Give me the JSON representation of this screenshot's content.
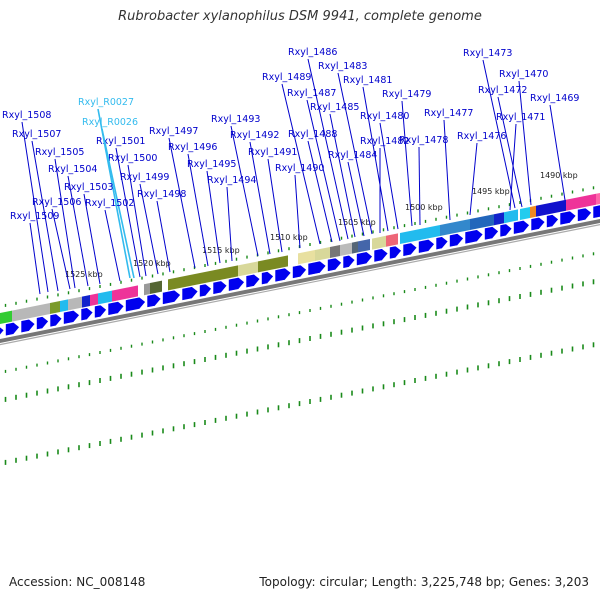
{
  "title": "Rubrobacter xylanophilus DSM 9941, complete genome",
  "footer": {
    "accession": "Accession: NC_008148",
    "stats": "Topology: circular; Length: 3,225,748 bp; Genes: 3,203"
  },
  "colors": {
    "gene_label": "#0000cc",
    "rna_label": "#33bbee",
    "cds_arrow": "#0000ee",
    "backbone": "#777777",
    "tick": "#1a8a1a"
  },
  "kbp_ticks": [
    "1490 kbp",
    "1495 kbp",
    "1500 kbp",
    "1505 kbp",
    "1510 kbp",
    "1515 kbp",
    "1520 kbp",
    "1525 kbp"
  ],
  "gene_labels": [
    {
      "text": "Rxyl_1473",
      "kind": "gene"
    },
    {
      "text": "Rxyl_1470",
      "kind": "gene"
    },
    {
      "text": "Rxyl_1472",
      "kind": "gene"
    },
    {
      "text": "Rxyl_1469",
      "kind": "gene"
    },
    {
      "text": "Rxyl_1471",
      "kind": "gene"
    },
    {
      "text": "Rxyl_1476",
      "kind": "gene"
    },
    {
      "text": "Rxyl_1477",
      "kind": "gene"
    },
    {
      "text": "Rxyl_1478",
      "kind": "gene"
    },
    {
      "text": "Rxyl_1479",
      "kind": "gene"
    },
    {
      "text": "Rxyl_1480",
      "kind": "gene"
    },
    {
      "text": "Rxyl_1481",
      "kind": "gene"
    },
    {
      "text": "Rxyl_1482",
      "kind": "gene"
    },
    {
      "text": "Rxyl_1483",
      "kind": "gene"
    },
    {
      "text": "Rxyl_1484",
      "kind": "gene"
    },
    {
      "text": "Rxyl_1485",
      "kind": "gene"
    },
    {
      "text": "Rxyl_1486",
      "kind": "gene"
    },
    {
      "text": "Rxyl_1487",
      "kind": "gene"
    },
    {
      "text": "Rxyl_1488",
      "kind": "gene"
    },
    {
      "text": "Rxyl_1489",
      "kind": "gene"
    },
    {
      "text": "Rxyl_1490",
      "kind": "gene"
    },
    {
      "text": "Rxyl_1491",
      "kind": "gene"
    },
    {
      "text": "Rxyl_1492",
      "kind": "gene"
    },
    {
      "text": "Rxyl_1493",
      "kind": "gene"
    },
    {
      "text": "Rxyl_1494",
      "kind": "gene"
    },
    {
      "text": "Rxyl_1495",
      "kind": "gene"
    },
    {
      "text": "Rxyl_1496",
      "kind": "gene"
    },
    {
      "text": "Rxyl_1497",
      "kind": "gene"
    },
    {
      "text": "Rxyl_1498",
      "kind": "gene"
    },
    {
      "text": "Rxyl_1499",
      "kind": "gene"
    },
    {
      "text": "Rxyl_1500",
      "kind": "gene"
    },
    {
      "text": "Rxyl_1501",
      "kind": "gene"
    },
    {
      "text": "Rxyl_R0026",
      "kind": "rna"
    },
    {
      "text": "Rxyl_R0027",
      "kind": "rna"
    },
    {
      "text": "Rxyl_1502",
      "kind": "gene"
    },
    {
      "text": "Rxyl_1503",
      "kind": "gene"
    },
    {
      "text": "Rxyl_1504",
      "kind": "gene"
    },
    {
      "text": "Rxyl_1505",
      "kind": "gene"
    },
    {
      "text": "Rxyl_1506",
      "kind": "gene"
    },
    {
      "text": "Rxyl_1507",
      "kind": "gene"
    },
    {
      "text": "Rxyl_1508",
      "kind": "gene"
    },
    {
      "text": "Rxyl_1509",
      "kind": "gene"
    }
  ]
}
